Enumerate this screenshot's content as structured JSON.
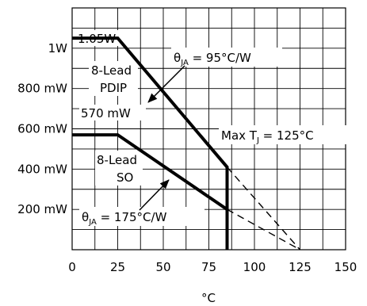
{
  "chart_data": {
    "type": "line",
    "xlabel": "°C",
    "ylabel": "",
    "xlim": [
      0,
      150
    ],
    "ylim": [
      0,
      1.2
    ],
    "grid": true,
    "x_ticks": [
      0,
      25,
      50,
      75,
      100,
      125,
      150
    ],
    "x_tick_labels": [
      "0",
      "25",
      "50",
      "75",
      "100",
      "125",
      "150"
    ],
    "y_ticks": [
      0.2,
      0.4,
      0.6,
      0.8,
      1.0
    ],
    "y_tick_labels": [
      "200 mW",
      "400 mW",
      "600 mW",
      "800 mW",
      "1W"
    ],
    "series": [
      {
        "name": "8-Lead PDIP",
        "x": [
          0,
          25,
          85,
          85
        ],
        "y": [
          1.05,
          1.05,
          0.41,
          0
        ],
        "style": "solid"
      },
      {
        "name": "8-Lead SO",
        "x": [
          0,
          25,
          85,
          85
        ],
        "y": [
          0.57,
          0.57,
          0.2,
          0
        ],
        "style": "solid"
      },
      {
        "name": "",
        "x": [
          85,
          125
        ],
        "y": [
          0.41,
          0
        ],
        "style": "dashed"
      },
      {
        "name": "",
        "x": [
          85,
          125
        ],
        "y": [
          0.2,
          0
        ],
        "style": "dashed"
      }
    ],
    "annotations": {
      "pdip_power": "1.05W",
      "pdip_label_line1": "8-Lead",
      "pdip_label_line2": "PDIP",
      "pdip_theta_sym": "θ",
      "pdip_theta_sub": "JA",
      "pdip_theta_val": " = 95°C/W",
      "so_power": "570 mW",
      "so_label_line1": "8-Lead",
      "so_label_line2": "SO",
      "so_theta_sym": "θ",
      "so_theta_sub": "JA",
      "so_theta_val": " = 175°C/W",
      "maxtj_pre": "Max T",
      "maxtj_sub": "J",
      "maxtj_val": " = 125°C"
    }
  }
}
